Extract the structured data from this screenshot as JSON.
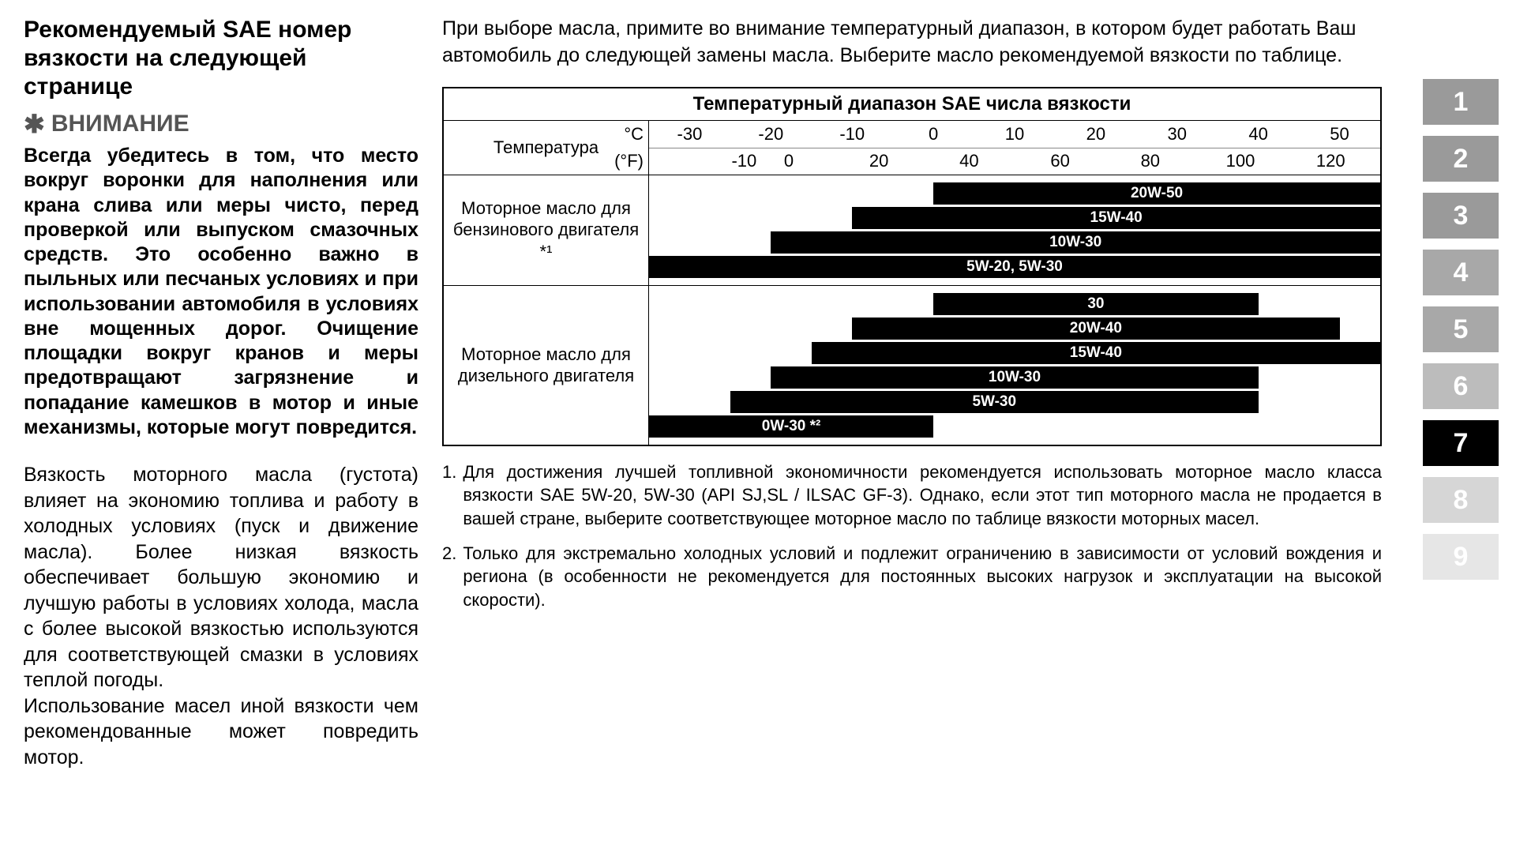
{
  "left": {
    "heading": "Рекомендуемый SAE номер вязкости на следующей странице",
    "asterisk": "✱",
    "attention": "ВНИМАНИЕ",
    "bold_para": "Всегда убедитесь в том, что место вокруг воронки для наполнения или крана слива или меры чисто, перед проверкой или выпуском смазочных средств. Это особенно важно в пыльных или песчаных условиях и при использовании автомобиля в условиях вне мощенных дорог. Очищение площадки вокруг кранов и меры предотвращают загрязнение и попадание камешков в мотор и иные механизмы, которые могут повредится.",
    "para1": "Вязкость моторного масла (густота) влияет на экономию топлива и работу в холодных условиях (пуск и движение масла). Более низкая вязкость обеспечивает большую экономию и лучшую работы в условиях холода, масла с более высокой вязкостью используются для соответствующей смазки в условиях теплой погоды.",
    "para2": "Использование масел иной вязкости чем рекомендованные может повредить мотор."
  },
  "right": {
    "intro": "При выборе масла, примите во внимание температурный диапазон, в котором будет работать Ваш автомобиль до следующей замены масла. Выберите масло рекомендуемой вязкости по таблице."
  },
  "chart": {
    "title": "Температурный диапазон SAE числа вязкости",
    "temp_label": "Температура",
    "unit_c": "°C",
    "unit_f": "(°F)",
    "range_min_c": -35,
    "range_max_c": 55,
    "ticks_c": [
      -30,
      -20,
      -10,
      0,
      10,
      20,
      30,
      40,
      50
    ],
    "ticks_f": [
      -10,
      0,
      20,
      40,
      60,
      80,
      100,
      120
    ],
    "ticks_f_c_positions": [
      -23.3,
      -17.8,
      -6.7,
      4.4,
      15.6,
      26.7,
      37.8,
      48.9
    ],
    "sections": [
      {
        "label": "Моторное масло для бензинового двигателя *¹",
        "bars": [
          {
            "label": "20W-50",
            "from_c": 0,
            "to_c": 55
          },
          {
            "label": "15W-40",
            "from_c": -10,
            "to_c": 55
          },
          {
            "label": "10W-30",
            "from_c": -20,
            "to_c": 55
          },
          {
            "label": "5W-20, 5W-30",
            "from_c": -35,
            "to_c": 55
          }
        ]
      },
      {
        "label": "Моторное масло для дизельного двигателя",
        "bars": [
          {
            "label": "30",
            "from_c": 0,
            "to_c": 40
          },
          {
            "label": "20W-40",
            "from_c": -10,
            "to_c": 50
          },
          {
            "label": "15W-40",
            "from_c": -15,
            "to_c": 55
          },
          {
            "label": "10W-30",
            "from_c": -20,
            "to_c": 40
          },
          {
            "label": "5W-30",
            "from_c": -25,
            "to_c": 40
          },
          {
            "label": "0W-30 *²",
            "from_c": -35,
            "to_c": 0
          }
        ]
      }
    ]
  },
  "footnotes": [
    {
      "num": "1.",
      "text": "Для достижения лучшей топливной экономичности рекомендуется использовать моторное масло класса вязкости SAE 5W-20, 5W-30 (API SJ,SL / ILSAC GF-3). Однако, если этот тип моторного масла не продается в вашей стране, выберите соответствующее моторное масло по таблице вязкости моторных масел."
    },
    {
      "num": "2.",
      "text": "Только для экстремально холодных условий и подлежит ограничению в зависимости от условий вождения и региона (в особенности не рекомендуется для постоянных высоких нагрузок и эксплуатации на высокой скорости)."
    }
  ],
  "tabs": [
    {
      "label": "1",
      "bg": "#9a9a9a",
      "fg": "#ffffff"
    },
    {
      "label": "2",
      "bg": "#9a9a9a",
      "fg": "#ffffff"
    },
    {
      "label": "3",
      "bg": "#9a9a9a",
      "fg": "#ffffff"
    },
    {
      "label": "4",
      "bg": "#a8a8a8",
      "fg": "#ffffff"
    },
    {
      "label": "5",
      "bg": "#a8a8a8",
      "fg": "#ffffff"
    },
    {
      "label": "6",
      "bg": "#bcbcbc",
      "fg": "#ffffff"
    },
    {
      "label": "7",
      "bg": "#000000",
      "fg": "#ffffff"
    },
    {
      "label": "8",
      "bg": "#d6d6d6",
      "fg": "#ffffff"
    },
    {
      "label": "9",
      "bg": "#e6e6e6",
      "fg": "#ffffff"
    }
  ]
}
